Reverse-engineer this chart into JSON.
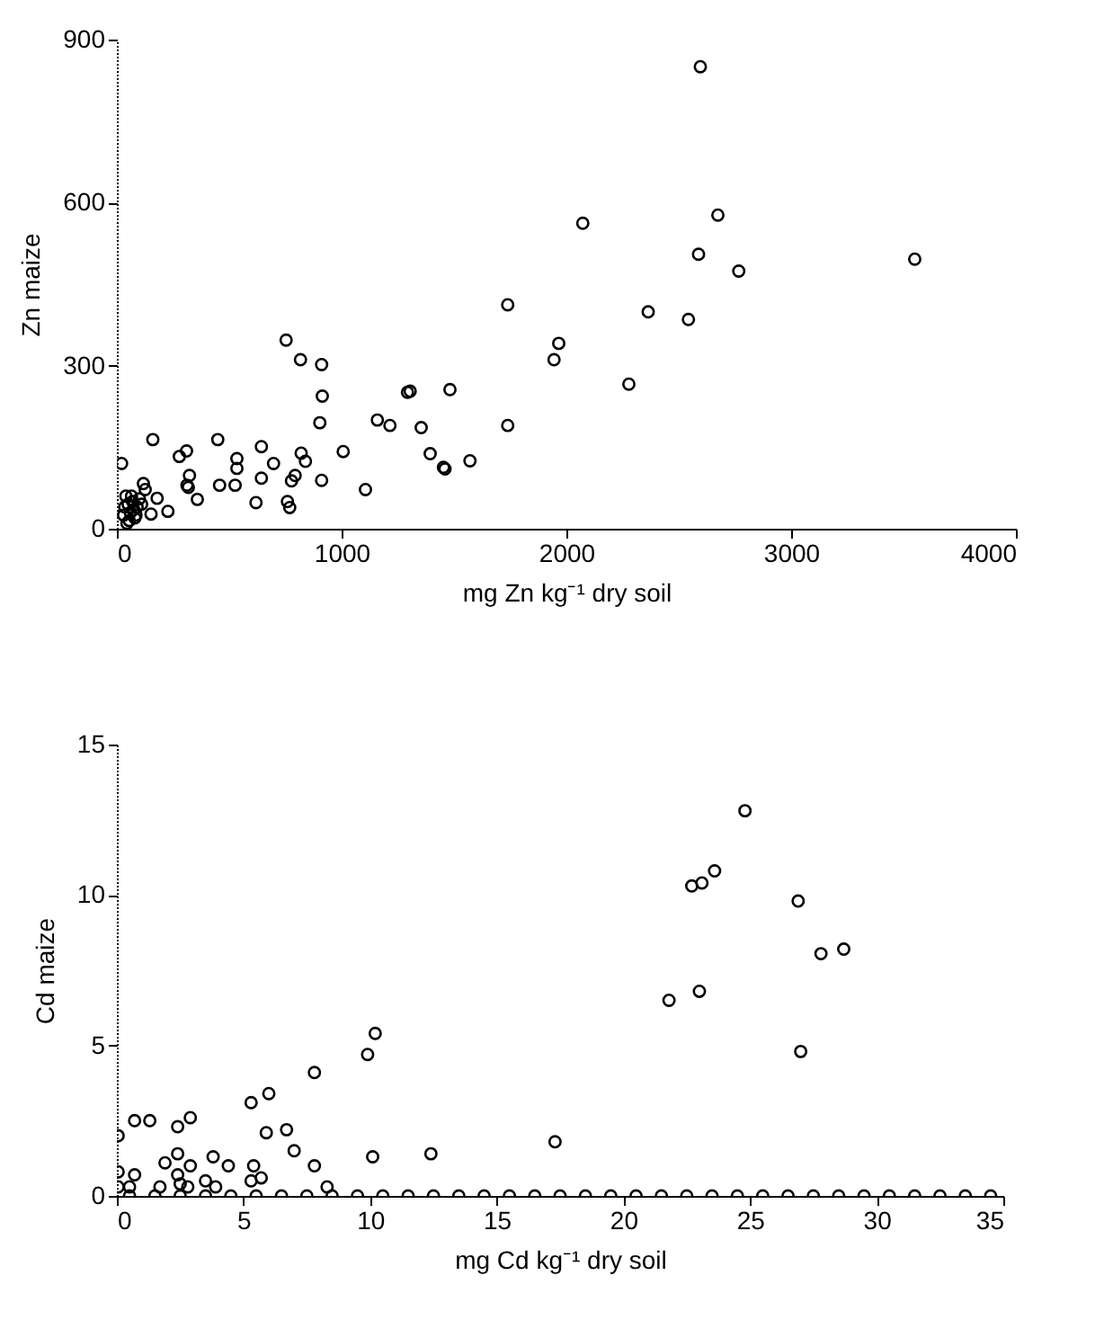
{
  "chart_data": [
    {
      "type": "scatter",
      "xlabel": "mg Zn kg⁻¹ dry soil",
      "ylabel": "Zn maize",
      "xlim": [
        0,
        4000
      ],
      "xticks": [
        0,
        1000,
        2000,
        3000,
        4000
      ],
      "ylim": [
        0,
        900
      ],
      "yticks": [
        0,
        300,
        600,
        900
      ],
      "marker": "circle",
      "grid": false,
      "series": [
        {
          "color": "#000000",
          "x": [
            2596,
            2073,
            2674,
            2588,
            2767,
            3550,
            2364,
            2543,
            1966,
            1945,
            2278,
            1739,
            753,
            817,
            911,
            914,
            1293,
            1305,
            1482,
            903,
            1159,
            1215,
            1354,
            1739,
            160,
            449,
            310,
            278,
            643,
            534,
            534,
            820,
            839,
            697,
            1007,
            1394,
            1571,
            1453,
            1460,
            21,
            323,
            312,
            318,
            457,
            526,
            643,
            793,
            777,
            911,
            1106,
            358,
            619,
            759,
            769,
            227,
            118,
            126,
            179,
            152,
            40,
            50,
            60,
            70,
            80,
            30,
            90,
            100,
            55,
            75,
            45,
            110,
            65,
            85,
            35
          ],
          "values": [
            850,
            562,
            577,
            505,
            474,
            496,
            399,
            385,
            341,
            311,
            266,
            412,
            347,
            311,
            302,
            244,
            251,
            253,
            256,
            195,
            200,
            190,
            186,
            190,
            164,
            164,
            143,
            133,
            151,
            129,
            111,
            139,
            124,
            120,
            142,
            138,
            125,
            113,
            110,
            120,
            98,
            80,
            76,
            80,
            80,
            93,
            98,
            88,
            89,
            72,
            54,
            48,
            50,
            39,
            32,
            83,
            72,
            56,
            27,
            60,
            45,
            30,
            50,
            20,
            25,
            40,
            55,
            15,
            35,
            10,
            45,
            60,
            25,
            40
          ]
        }
      ]
    },
    {
      "type": "scatter",
      "xlabel": "mg Cd kg⁻¹ dry soil",
      "ylabel": "Cd maize",
      "xlim": [
        0,
        35
      ],
      "xticks": [
        0,
        5,
        10,
        15,
        20,
        25,
        30,
        35
      ],
      "ylim": [
        0,
        15
      ],
      "yticks": [
        0,
        5,
        10,
        15
      ],
      "marker": "circle",
      "grid": false,
      "series": [
        {
          "color": "#000000",
          "x": [
            24.8,
            22.7,
            23.1,
            23.6,
            26.9,
            27.8,
            28.7,
            21.8,
            23.0,
            27.0,
            17.3,
            12.4,
            10.2,
            9.9,
            7.8,
            6.0,
            5.3,
            2.9,
            2.4,
            0.7,
            1.3,
            0.05,
            5.9,
            6.7,
            7.0,
            10.1,
            3.8,
            2.4,
            1.9,
            2.9,
            4.4,
            5.4,
            7.8,
            0.05,
            0.7,
            2.4,
            2.5,
            5.3,
            5.7,
            3.5,
            3.9,
            2.8,
            1.7,
            0.5,
            0.05,
            8.3,
            0.5,
            1.5,
            2.5,
            3.5,
            4.5,
            5.5,
            6.5,
            7.5,
            8.5,
            9.5,
            10.5,
            11.5,
            12.5,
            13.5,
            14.5,
            15.5,
            16.5,
            17.5,
            18.5,
            19.5,
            20.5,
            21.5,
            22.5,
            23.5,
            24.5,
            25.5,
            26.5,
            27.5,
            28.5,
            29.5,
            30.5,
            31.5,
            32.5,
            33.5,
            34.5
          ],
          "values": [
            12.8,
            10.3,
            10.4,
            10.8,
            9.8,
            8.05,
            8.2,
            6.5,
            6.8,
            4.8,
            1.8,
            1.4,
            5.4,
            4.7,
            4.1,
            3.4,
            3.1,
            2.6,
            2.3,
            2.5,
            2.5,
            2.0,
            2.1,
            2.2,
            1.5,
            1.3,
            1.3,
            1.4,
            1.1,
            1.0,
            1.0,
            1.0,
            1.0,
            0.8,
            0.7,
            0.7,
            0.4,
            0.5,
            0.6,
            0.5,
            0.3,
            0.3,
            0.3,
            0.3,
            0.3,
            0.3,
            0,
            0,
            0,
            0,
            0,
            0,
            0,
            0,
            0,
            0,
            0,
            0,
            0,
            0,
            0,
            0,
            0,
            0,
            0,
            0,
            0,
            0,
            0,
            0,
            0,
            0,
            0,
            0,
            0,
            0,
            0,
            0,
            0,
            0,
            0
          ]
        }
      ]
    }
  ]
}
